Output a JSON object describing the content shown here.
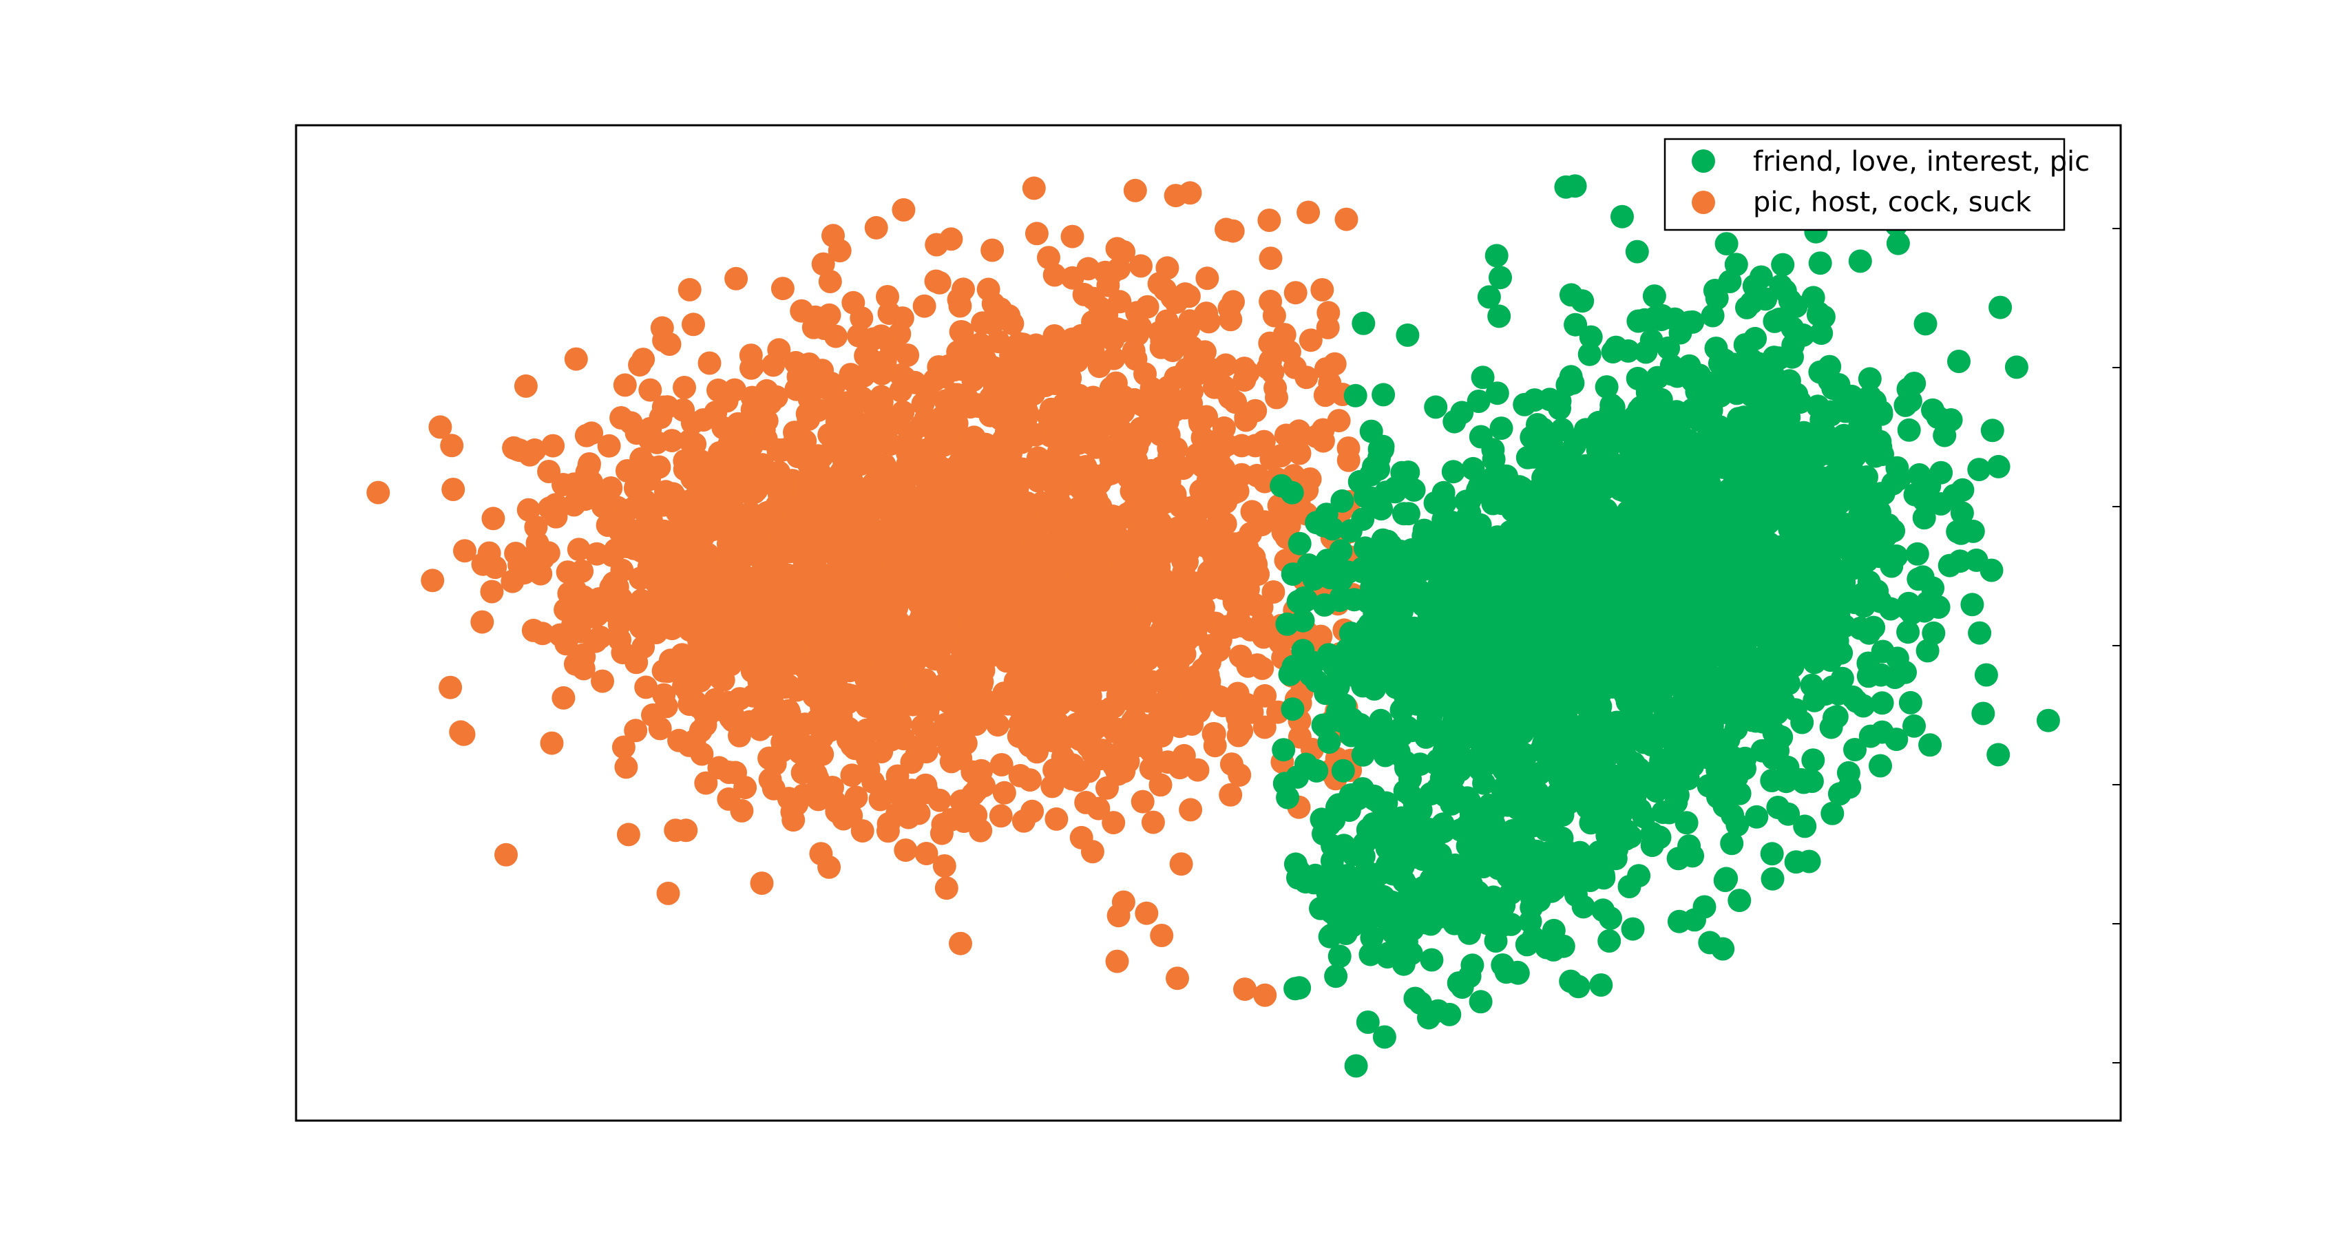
{
  "chart_data": {
    "type": "scatter",
    "title": "",
    "xlabel": "",
    "ylabel": "",
    "xlim": [
      0,
      100
    ],
    "ylim": [
      0,
      100
    ],
    "grid": false,
    "tick_labels_shown": false,
    "legend_placement": "top-right",
    "series": [
      {
        "name": "friend, love, interest, pic",
        "color": "#00b057",
        "clusters": [
          {
            "cx": 68,
            "cy": 48,
            "sx": 6.5,
            "sy": 11,
            "n": 1500,
            "seed": 11
          },
          {
            "cx": 79,
            "cy": 58,
            "sx": 5,
            "sy": 11,
            "n": 1100,
            "seed": 23
          },
          {
            "cx": 63,
            "cy": 25,
            "sx": 5,
            "sy": 6,
            "n": 280,
            "seed": 37
          }
        ],
        "outliers": [
          [
            69.6,
            93.8
          ],
          [
            70.1,
            93.9
          ],
          [
            58.1,
            5.5
          ],
          [
            94.3,
            75.7
          ],
          [
            93.4,
            81.7
          ],
          [
            92.1,
            56.3
          ],
          [
            90.7,
            70.4
          ],
          [
            89.7,
            53.5
          ],
          [
            87.7,
            90.0
          ],
          [
            83.3,
            89.3
          ],
          [
            78.4,
            88.1
          ],
          [
            73.5,
            87.3
          ],
          [
            65.8,
            86.9
          ],
          [
            66.0,
            84.7
          ],
          [
            58.5,
            80.1
          ]
        ]
      },
      {
        "name": "pic, host, cock, suck",
        "color": "#f27935",
        "clusters": [
          {
            "cx": 38,
            "cy": 52,
            "sx": 10,
            "sy": 11,
            "n": 1900,
            "seed": 51
          },
          {
            "cx": 24,
            "cy": 58,
            "sx": 6,
            "sy": 8,
            "n": 500,
            "seed": 67
          },
          {
            "cx": 44,
            "cy": 73,
            "sx": 9,
            "sy": 8,
            "n": 350,
            "seed": 79
          }
        ],
        "outliers": [
          [
            4.5,
            63.1
          ],
          [
            12.6,
            73.8
          ],
          [
            35.1,
            88.0
          ],
          [
            49.0,
            93.2
          ],
          [
            33.3,
            91.5
          ],
          [
            31.8,
            89.7
          ],
          [
            29.8,
            87.4
          ],
          [
            45.0,
            87.6
          ],
          [
            45.1,
            85.6
          ],
          [
            10.2,
            50.1
          ],
          [
            53.4,
            82.3
          ],
          [
            45.0,
            16.0
          ],
          [
            48.3,
            14.3
          ],
          [
            52.0,
            13.2
          ],
          [
            53.1,
            12.6
          ]
        ]
      }
    ]
  }
}
